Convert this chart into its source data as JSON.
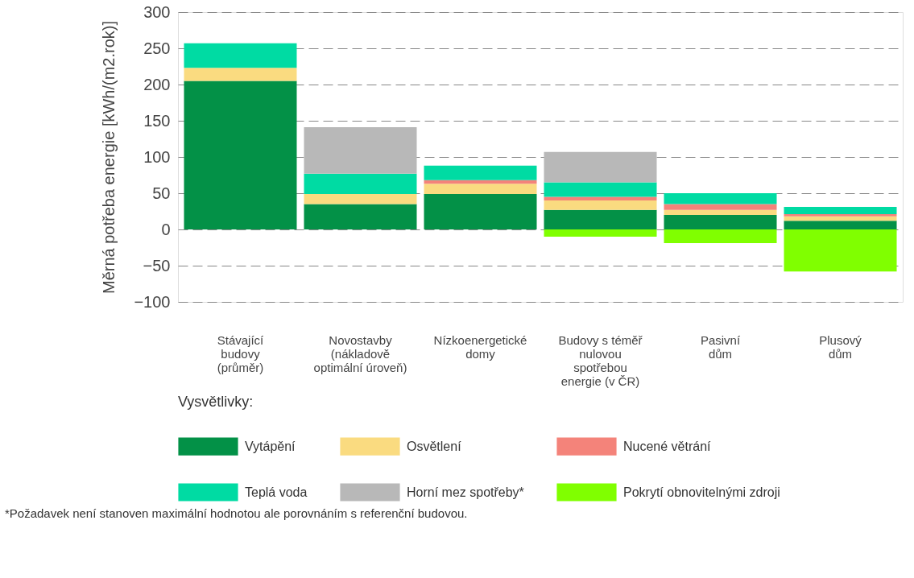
{
  "chart_data": {
    "type": "bar",
    "stacked": true,
    "ylabel": "Měrná potřeba energie [kWh/(m2.rok)]",
    "legend_title": "Vysvětlivky:",
    "categories": [
      "Stávající\nbudovy\n(průměr)",
      "Novostavby\n(nákladově\noptimální úroveň)",
      "Nízkoenergetické\ndomy",
      "Budovy s téměř\nnulovou\nspotřebou\nenergie (v ČR)",
      "Pasivní\ndům",
      "Plusový\ndům"
    ],
    "series": [
      {
        "name": "Vytápění",
        "color": "#039147",
        "values": [
          205,
          35,
          49,
          27,
          20,
          12
        ]
      },
      {
        "name": "Osvětlení",
        "color": "#fadb80",
        "values": [
          18,
          14,
          14,
          13,
          7,
          6
        ]
      },
      {
        "name": "Nucené větrání",
        "color": "#f4837a",
        "values": [
          null,
          null,
          5,
          5,
          8,
          3
        ]
      },
      {
        "name": "Teplá voda",
        "color": "#00dba3",
        "values": [
          34,
          28,
          20,
          20,
          15,
          10
        ]
      },
      {
        "name": "Horní mez spotřeby*",
        "color": "#b8b8b8",
        "values": [
          null,
          64,
          null,
          42,
          null,
          null
        ]
      },
      {
        "name": "Pokrytí obnovitelnými zdroji",
        "color": "#80ff00",
        "values": [
          null,
          null,
          null,
          -10,
          -19,
          -58
        ]
      }
    ],
    "ylim": [
      -100,
      300
    ],
    "yticks": [
      -100,
      -50,
      0,
      50,
      100,
      150,
      200,
      250,
      300
    ],
    "grid": "y",
    "legend": "bottom",
    "annotations": [
      "*Požadavek není stanoven maximální hodnotou ale porovnáním s referenční budovou."
    ]
  }
}
